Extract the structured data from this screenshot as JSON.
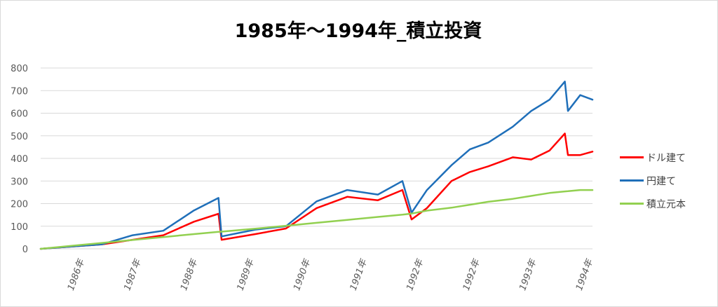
{
  "chart_data": {
    "type": "line",
    "title": "1985年～1994年_積立投資",
    "xlabel": "",
    "ylabel": "",
    "ylim": [
      0,
      800
    ],
    "yticks": [
      "0",
      "100",
      "200",
      "300",
      "400",
      "500",
      "600",
      "700",
      "800"
    ],
    "xticks": [
      "1986年",
      "1987年",
      "1988年",
      "1989年",
      "1990年",
      "1991年",
      "1992年",
      "1992年",
      "1993年",
      "1994年"
    ],
    "grid": true,
    "legend_position": "right",
    "x": [
      1985.0,
      1985.5,
      1986.0,
      1986.5,
      1987.0,
      1987.5,
      1987.9,
      1987.95,
      1988.5,
      1989.0,
      1989.5,
      1990.0,
      1990.5,
      1990.9,
      1991.05,
      1991.3,
      1991.7,
      1992.0,
      1992.3,
      1992.7,
      1993.0,
      1993.3,
      1993.55,
      1993.6,
      1993.8,
      1994.0
    ],
    "series": [
      {
        "name": "ドル建て",
        "color": "#ff0000",
        "values": [
          0,
          10,
          20,
          40,
          60,
          120,
          155,
          40,
          65,
          90,
          180,
          230,
          215,
          260,
          130,
          180,
          300,
          340,
          365,
          405,
          395,
          435,
          510,
          415,
          415,
          430
        ]
      },
      {
        "name": "円建て",
        "color": "#1f6fb9",
        "values": [
          0,
          10,
          20,
          60,
          80,
          170,
          225,
          55,
          85,
          100,
          210,
          260,
          240,
          300,
          160,
          260,
          370,
          440,
          470,
          540,
          610,
          660,
          740,
          610,
          680,
          660
        ]
      },
      {
        "name": "積立元本",
        "color": "#92d050",
        "values": [
          0,
          13,
          26,
          39,
          52,
          65,
          75,
          76,
          89,
          102,
          115,
          128,
          141,
          151,
          156,
          169,
          182,
          195,
          208,
          221,
          234,
          247,
          254,
          255,
          260,
          260
        ]
      }
    ]
  }
}
